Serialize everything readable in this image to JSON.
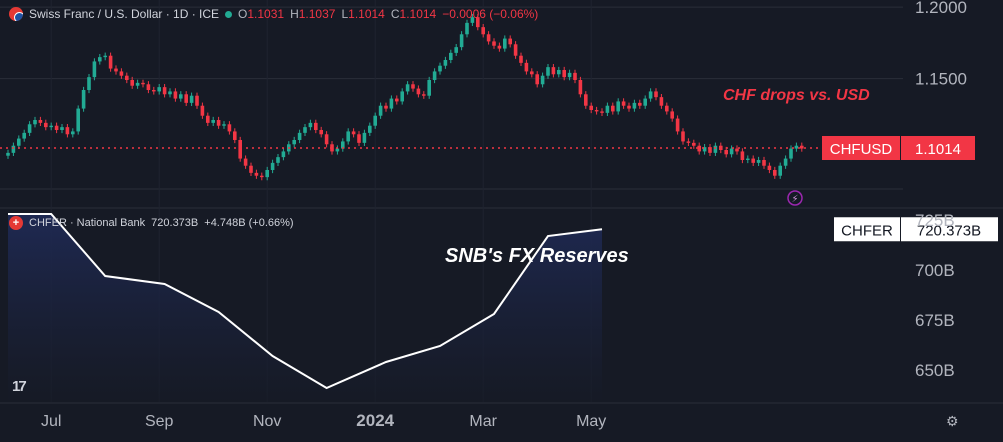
{
  "header": {
    "symbol": "Swiss Franc / U.S. Dollar · 1D · ICE",
    "o_label": "O",
    "o_value": "1.1031",
    "h_label": "H",
    "h_value": "1.1037",
    "l_label": "L",
    "l_value": "1.1014",
    "c_label": "C",
    "c_value": "1.1014",
    "change": "−0.0006 (−0.06%)"
  },
  "indicator_header": {
    "name": "CHFER · National Bank",
    "value": "720.373B",
    "change": "+4.748B (+0.66%)"
  },
  "colors": {
    "background": "#161a25",
    "up": "#22ab94",
    "down": "#f23645",
    "reserves_line": "#ffffff",
    "annotation_red": "#f23645"
  },
  "chart_data": [
    {
      "type": "candlestick",
      "name": "CHFUSD",
      "ylim": [
        1.065,
        1.205
      ],
      "yticks": [
        "1.2000",
        "1.1500"
      ],
      "ytick_values": [
        1.2,
        1.15
      ],
      "last_value": 1.1014,
      "last_label": "CHFUSD",
      "last_price_text": "1.1014",
      "annotation": "CHF drops vs. USD",
      "closes": [
        1.098,
        1.103,
        1.108,
        1.112,
        1.118,
        1.121,
        1.119,
        1.116,
        1.117,
        1.114,
        1.116,
        1.111,
        1.113,
        1.129,
        1.142,
        1.151,
        1.162,
        1.165,
        1.166,
        1.157,
        1.155,
        1.152,
        1.149,
        1.145,
        1.147,
        1.146,
        1.142,
        1.141,
        1.144,
        1.139,
        1.141,
        1.136,
        1.139,
        1.133,
        1.138,
        1.131,
        1.124,
        1.119,
        1.121,
        1.117,
        1.118,
        1.113,
        1.107,
        1.094,
        1.089,
        1.084,
        1.082,
        1.081,
        1.086,
        1.091,
        1.095,
        1.099,
        1.104,
        1.107,
        1.112,
        1.116,
        1.119,
        1.114,
        1.111,
        1.104,
        1.099,
        1.101,
        1.106,
        1.113,
        1.111,
        1.105,
        1.112,
        1.117,
        1.124,
        1.131,
        1.129,
        1.136,
        1.134,
        1.141,
        1.146,
        1.143,
        1.139,
        1.138,
        1.149,
        1.155,
        1.159,
        1.163,
        1.168,
        1.172,
        1.181,
        1.189,
        1.193,
        1.186,
        1.181,
        1.176,
        1.173,
        1.171,
        1.178,
        1.174,
        1.166,
        1.161,
        1.155,
        1.153,
        1.146,
        1.152,
        1.158,
        1.153,
        1.156,
        1.151,
        1.154,
        1.149,
        1.139,
        1.131,
        1.128,
        1.127,
        1.126,
        1.131,
        1.127,
        1.134,
        1.131,
        1.129,
        1.133,
        1.131,
        1.136,
        1.141,
        1.137,
        1.131,
        1.127,
        1.122,
        1.113,
        1.106,
        1.105,
        1.103,
        1.099,
        1.102,
        1.098,
        1.103,
        1.1,
        1.097,
        1.101,
        1.099,
        1.093,
        1.094,
        1.091,
        1.093,
        1.089,
        1.086,
        1.082,
        1.089,
        1.094,
        1.101,
        1.103,
        1.101
      ],
      "x_axis_labels": [
        {
          "label": "Jul",
          "index": 8
        },
        {
          "label": "Sep",
          "index": 28
        },
        {
          "label": "Nov",
          "index": 48
        },
        {
          "label": "2024",
          "index": 68
        },
        {
          "label": "Mar",
          "index": 88
        },
        {
          "label": "May",
          "index": 108
        }
      ]
    },
    {
      "type": "area",
      "name": "CHFER",
      "title": "SNB's FX Reserves",
      "ylim": [
        634,
        730
      ],
      "yticks": [
        "725B",
        "700B",
        "675B",
        "650B"
      ],
      "ytick_values": [
        725,
        700,
        675,
        650
      ],
      "last_value": 720.373,
      "last_label": "CHFER",
      "last_value_text": "720.373B",
      "points": [
        {
          "i": 0,
          "v": 728
        },
        {
          "i": 8,
          "v": 728
        },
        {
          "i": 18,
          "v": 697
        },
        {
          "i": 29,
          "v": 693
        },
        {
          "i": 39,
          "v": 679
        },
        {
          "i": 49,
          "v": 657
        },
        {
          "i": 59,
          "v": 641
        },
        {
          "i": 70,
          "v": 654
        },
        {
          "i": 80,
          "v": 662
        },
        {
          "i": 90,
          "v": 678
        },
        {
          "i": 100,
          "v": 717
        },
        {
          "i": 110,
          "v": 720.373
        }
      ]
    }
  ]
}
